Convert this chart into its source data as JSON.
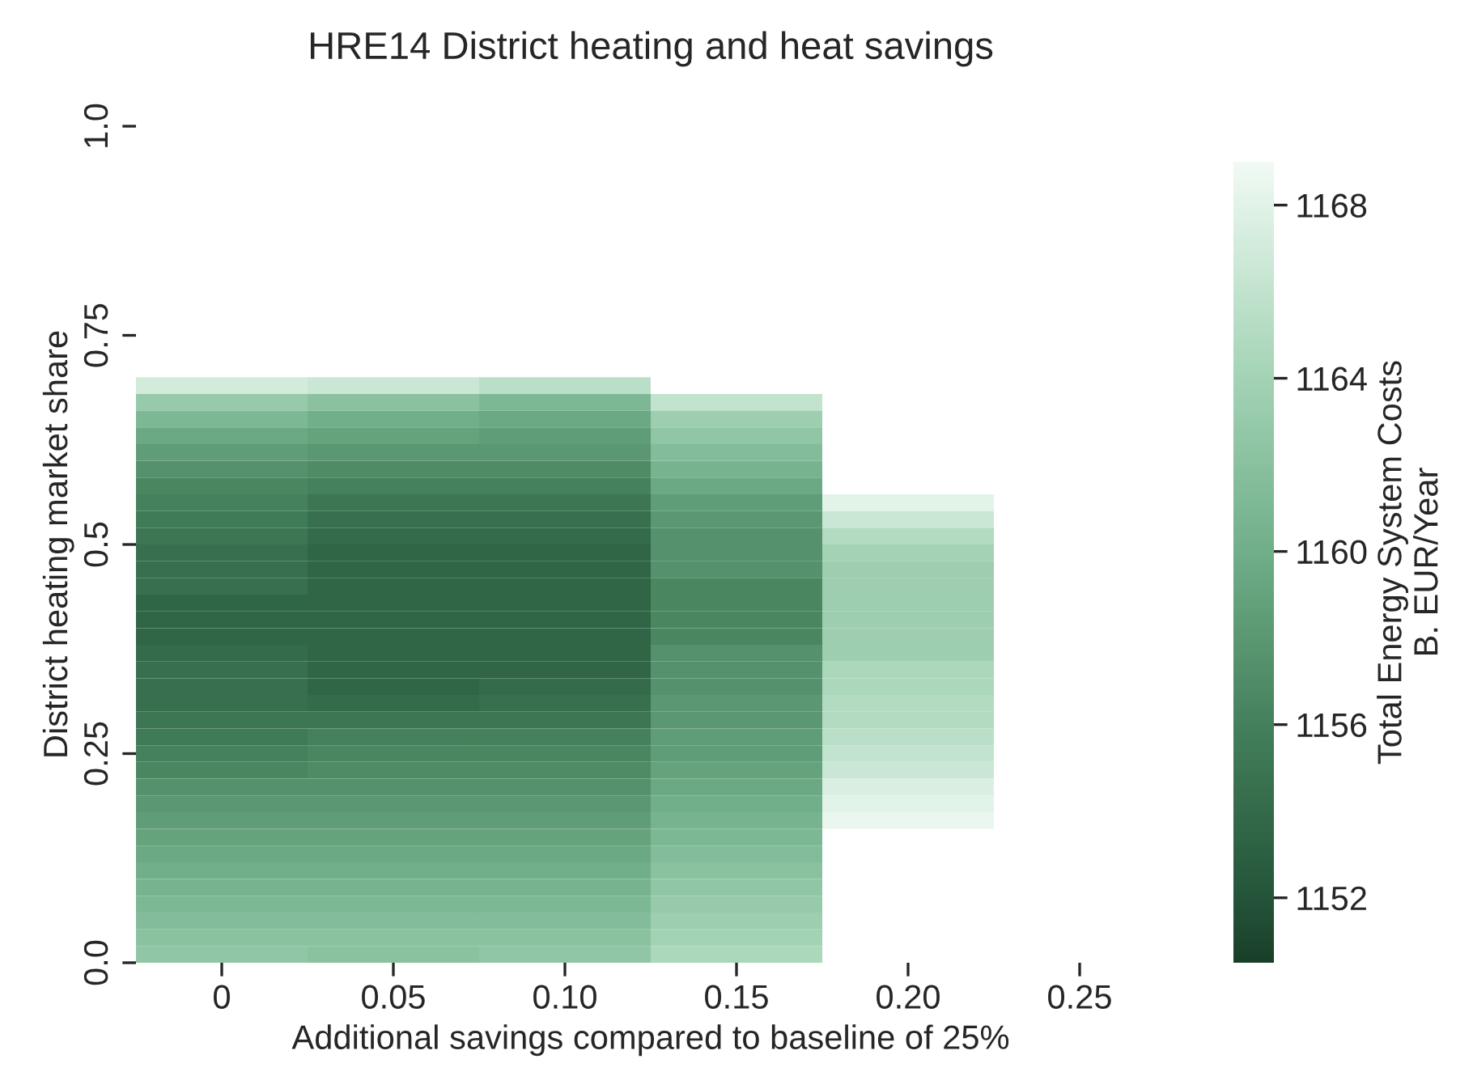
{
  "chart_data": {
    "type": "heatmap",
    "title": "HRE14 District heating and heat savings",
    "xlabel": "Additional savings compared to baseline of 25%",
    "ylabel": "District heating market share",
    "clabel": "Total Energy System Costs\nB. EUR/Year",
    "categories": [
      "0",
      "0.05",
      "0.10",
      "0.15",
      "0.20",
      "0.25"
    ],
    "ylim": [
      0,
      1
    ],
    "yticks": [
      {
        "value": 0,
        "label": "0.0"
      },
      {
        "value": 0.25,
        "label": "0.25"
      },
      {
        "value": 0.5,
        "label": "0.5"
      },
      {
        "value": 0.75,
        "label": "0.75"
      },
      {
        "value": 1,
        "label": "1.0"
      }
    ],
    "clim": [
      1150.5,
      1169
    ],
    "cticks": [
      1152,
      1156,
      1160,
      1164,
      1168
    ],
    "y": [
      0.69,
      0.67,
      0.65,
      0.63,
      0.61,
      0.59,
      0.57,
      0.55,
      0.53,
      0.51,
      0.49,
      0.47,
      0.45,
      0.43,
      0.41,
      0.39,
      0.37,
      0.35,
      0.33,
      0.31,
      0.29,
      0.27,
      0.25,
      0.23,
      0.21,
      0.19,
      0.17,
      0.15,
      0.13,
      0.11,
      0.09,
      0.07,
      0.05,
      0.03,
      0.01
    ],
    "cells": [
      [
        1167,
        1166.5,
        1165.5,
        null,
        null,
        null
      ],
      [
        1163,
        1162,
        1161,
        1166,
        null,
        null
      ],
      [
        1161,
        1160,
        1159.5,
        1163.5,
        null,
        null
      ],
      [
        1159.5,
        1159,
        1158.5,
        1162.5,
        null,
        null
      ],
      [
        1158.5,
        1158,
        1158,
        1161.5,
        null,
        null
      ],
      [
        1157.5,
        1157,
        1157,
        1160.5,
        null,
        null
      ],
      [
        1156.5,
        1156,
        1156,
        1159.5,
        null,
        null
      ],
      [
        1156,
        1155,
        1155,
        1158.5,
        1168,
        null
      ],
      [
        1155.5,
        1154.5,
        1154.5,
        1158,
        1166.5,
        null
      ],
      [
        1155,
        1154,
        1154,
        1157.5,
        1165,
        null
      ],
      [
        1154.5,
        1153.5,
        1153.5,
        1157.5,
        1164,
        null
      ],
      [
        1154.5,
        1153.5,
        1153.5,
        1157.5,
        1163.5,
        null
      ],
      [
        1154.5,
        1153.5,
        1153.5,
        1156.5,
        1163.5,
        null
      ],
      [
        1153.5,
        1153.5,
        1153.5,
        1156.5,
        1163.5,
        null
      ],
      [
        1153.5,
        1153.5,
        1153.5,
        1156.5,
        1163.5,
        null
      ],
      [
        1153.5,
        1153.5,
        1153.5,
        1156.5,
        1163.5,
        null
      ],
      [
        1154,
        1153.5,
        1153.5,
        1157.5,
        1163.5,
        null
      ],
      [
        1154.5,
        1153.5,
        1153.5,
        1157.5,
        1164.5,
        null
      ],
      [
        1154.5,
        1153.5,
        1154,
        1157.5,
        1164.5,
        null
      ],
      [
        1154.5,
        1154,
        1154.5,
        1158,
        1165,
        null
      ],
      [
        1155,
        1155,
        1155,
        1158,
        1165,
        null
      ],
      [
        1155.5,
        1156,
        1156,
        1158.5,
        1165.5,
        null
      ],
      [
        1156,
        1156.5,
        1156.5,
        1158.5,
        1166,
        null
      ],
      [
        1156.5,
        1157,
        1157,
        1159,
        1166.5,
        null
      ],
      [
        1157.5,
        1157.5,
        1157.5,
        1159.5,
        1167.5,
        null
      ],
      [
        1158,
        1158,
        1158,
        1160,
        1168,
        null
      ],
      [
        1158.5,
        1158.5,
        1158.5,
        1160.5,
        1168.5,
        null
      ],
      [
        1159,
        1159,
        1159,
        1161,
        null,
        null
      ],
      [
        1159.5,
        1159.5,
        1159.5,
        1161.5,
        null,
        null
      ],
      [
        1160,
        1160,
        1160,
        1162,
        null,
        null
      ],
      [
        1160.5,
        1160.5,
        1160.5,
        1162.5,
        null,
        null
      ],
      [
        1161,
        1161,
        1161,
        1163,
        null,
        null
      ],
      [
        1161.5,
        1161.5,
        1161.5,
        1163.5,
        null,
        null
      ],
      [
        1162,
        1162,
        1162,
        1164,
        null,
        null
      ],
      [
        1162.5,
        1162,
        1162.5,
        1164.5,
        null,
        null
      ]
    ]
  }
}
